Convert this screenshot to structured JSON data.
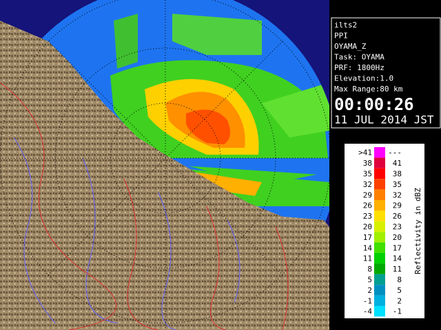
{
  "info": {
    "lines": [
      "ilts2",
      "PPI",
      "OYAMA_Z",
      "Task: OYAMA",
      "PRF: 1800Hz",
      "Elevation:1.0",
      "Max Range:80 km"
    ],
    "time": "00:00:26",
    "date": "11 JUL 2014 JST"
  },
  "legend": {
    "title": "Reflectivity in dBZ",
    "rows": [
      {
        "low": ">41",
        "high": "---",
        "color": "#ff00ff"
      },
      {
        "low": "38",
        "high": "41",
        "color": "#e0003c"
      },
      {
        "low": "35",
        "high": "38",
        "color": "#ff0000"
      },
      {
        "low": "32",
        "high": "35",
        "color": "#ff4000"
      },
      {
        "low": "29",
        "high": "32",
        "color": "#ff8000"
      },
      {
        "low": "26",
        "high": "29",
        "color": "#ffb000"
      },
      {
        "low": "23",
        "high": "26",
        "color": "#ffe000"
      },
      {
        "low": "20",
        "high": "23",
        "color": "#d8f000"
      },
      {
        "low": "17",
        "high": "20",
        "color": "#a0f000"
      },
      {
        "low": "14",
        "high": "17",
        "color": "#40e000"
      },
      {
        "low": "11",
        "high": "14",
        "color": "#00d000"
      },
      {
        "low": "8",
        "high": "11",
        "color": "#00a800"
      },
      {
        "low": "5",
        "high": "8",
        "color": "#00a090"
      },
      {
        "low": "2",
        "high": "5",
        "color": "#0090c0"
      },
      {
        "low": "-1",
        "high": "2",
        "color": "#00b0e0"
      },
      {
        "low": "-4",
        "high": "-1",
        "color": "#00e0ff"
      }
    ]
  }
}
